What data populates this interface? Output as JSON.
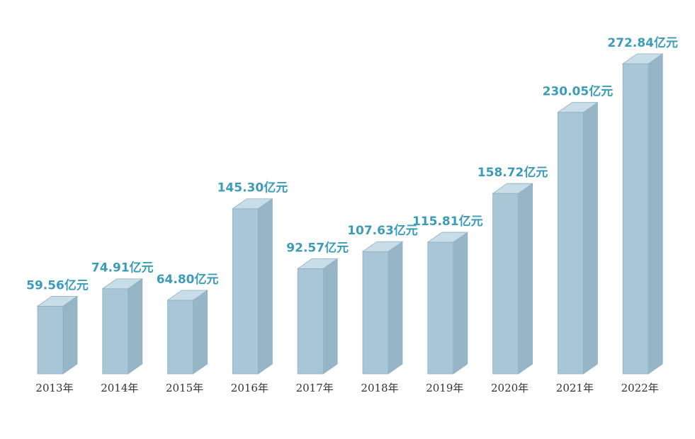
{
  "colors": {
    "bar_front": "#a9c6d6",
    "bar_side": "#96b6c8",
    "bar_top": "#c8dde8",
    "bar_edge": "#8fb0c2",
    "value_text": "#3a9cb8",
    "year_text": "#333333"
  },
  "chart_data": {
    "type": "bar",
    "title": "",
    "xlabel": "",
    "ylabel": "",
    "categories": [
      "2013年",
      "2014年",
      "2015年",
      "2016年",
      "2017年",
      "2018年",
      "2019年",
      "2020年",
      "2021年",
      "2022年"
    ],
    "values": [
      59.56,
      74.91,
      64.8,
      145.3,
      92.57,
      107.63,
      115.81,
      158.72,
      230.05,
      272.84
    ],
    "value_labels": [
      "59.56亿元",
      "74.91亿元",
      "64.80亿元",
      "145.30亿元",
      "92.57亿元",
      "107.63亿元",
      "115.81亿元",
      "158.72亿元",
      "230.05亿元",
      "272.84亿元"
    ],
    "unit": "亿元",
    "ylim": [
      0,
      272.84
    ],
    "grid": false,
    "legend": "none",
    "style": "3d-bars"
  }
}
